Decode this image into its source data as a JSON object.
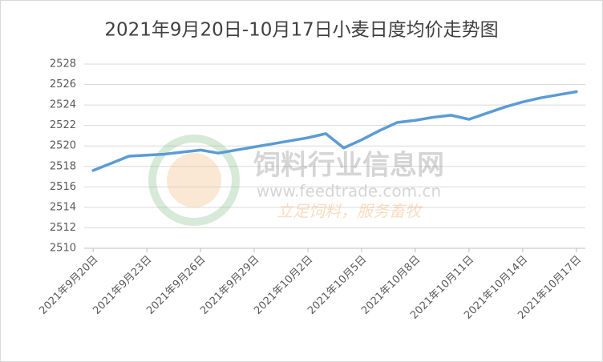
{
  "chart_data": {
    "type": "line",
    "title": "2021年9月20日-10月17日小麦日度均价走势图",
    "categories": [
      "2021年9月20日",
      null,
      null,
      "2021年9月23日",
      null,
      null,
      "2021年9月26日",
      null,
      null,
      "2021年9月29日",
      null,
      null,
      "2021年10月2日",
      null,
      null,
      "2021年10月5日",
      null,
      null,
      "2021年10月8日",
      null,
      null,
      "2021年10月11日",
      null,
      null,
      "2021年10月14日",
      null,
      null,
      "2021年10月17日"
    ],
    "series": [
      {
        "name": "小麦",
        "color": "#5b9bd5",
        "values": [
          2517.6,
          2518.3,
          2519.0,
          2519.1,
          2519.2,
          2519.4,
          2519.6,
          2519.3,
          2519.6,
          2519.9,
          2520.2,
          2520.5,
          2520.8,
          2521.2,
          2519.8,
          2520.6,
          2521.5,
          2522.3,
          2522.5,
          2522.8,
          2523.0,
          2522.6,
          2523.2,
          2523.8,
          2524.3,
          2524.7,
          2525.0,
          2525.3
        ]
      }
    ],
    "ylim": [
      2510,
      2528
    ],
    "yticks": [
      2510,
      2512,
      2514,
      2516,
      2518,
      2520,
      2522,
      2524,
      2526,
      2528
    ],
    "grid": true,
    "watermark": {
      "name": "饲料行业信息网",
      "url": "www.feedtrade.com.cn",
      "slogan": "立足饲料，服务畜牧"
    }
  }
}
